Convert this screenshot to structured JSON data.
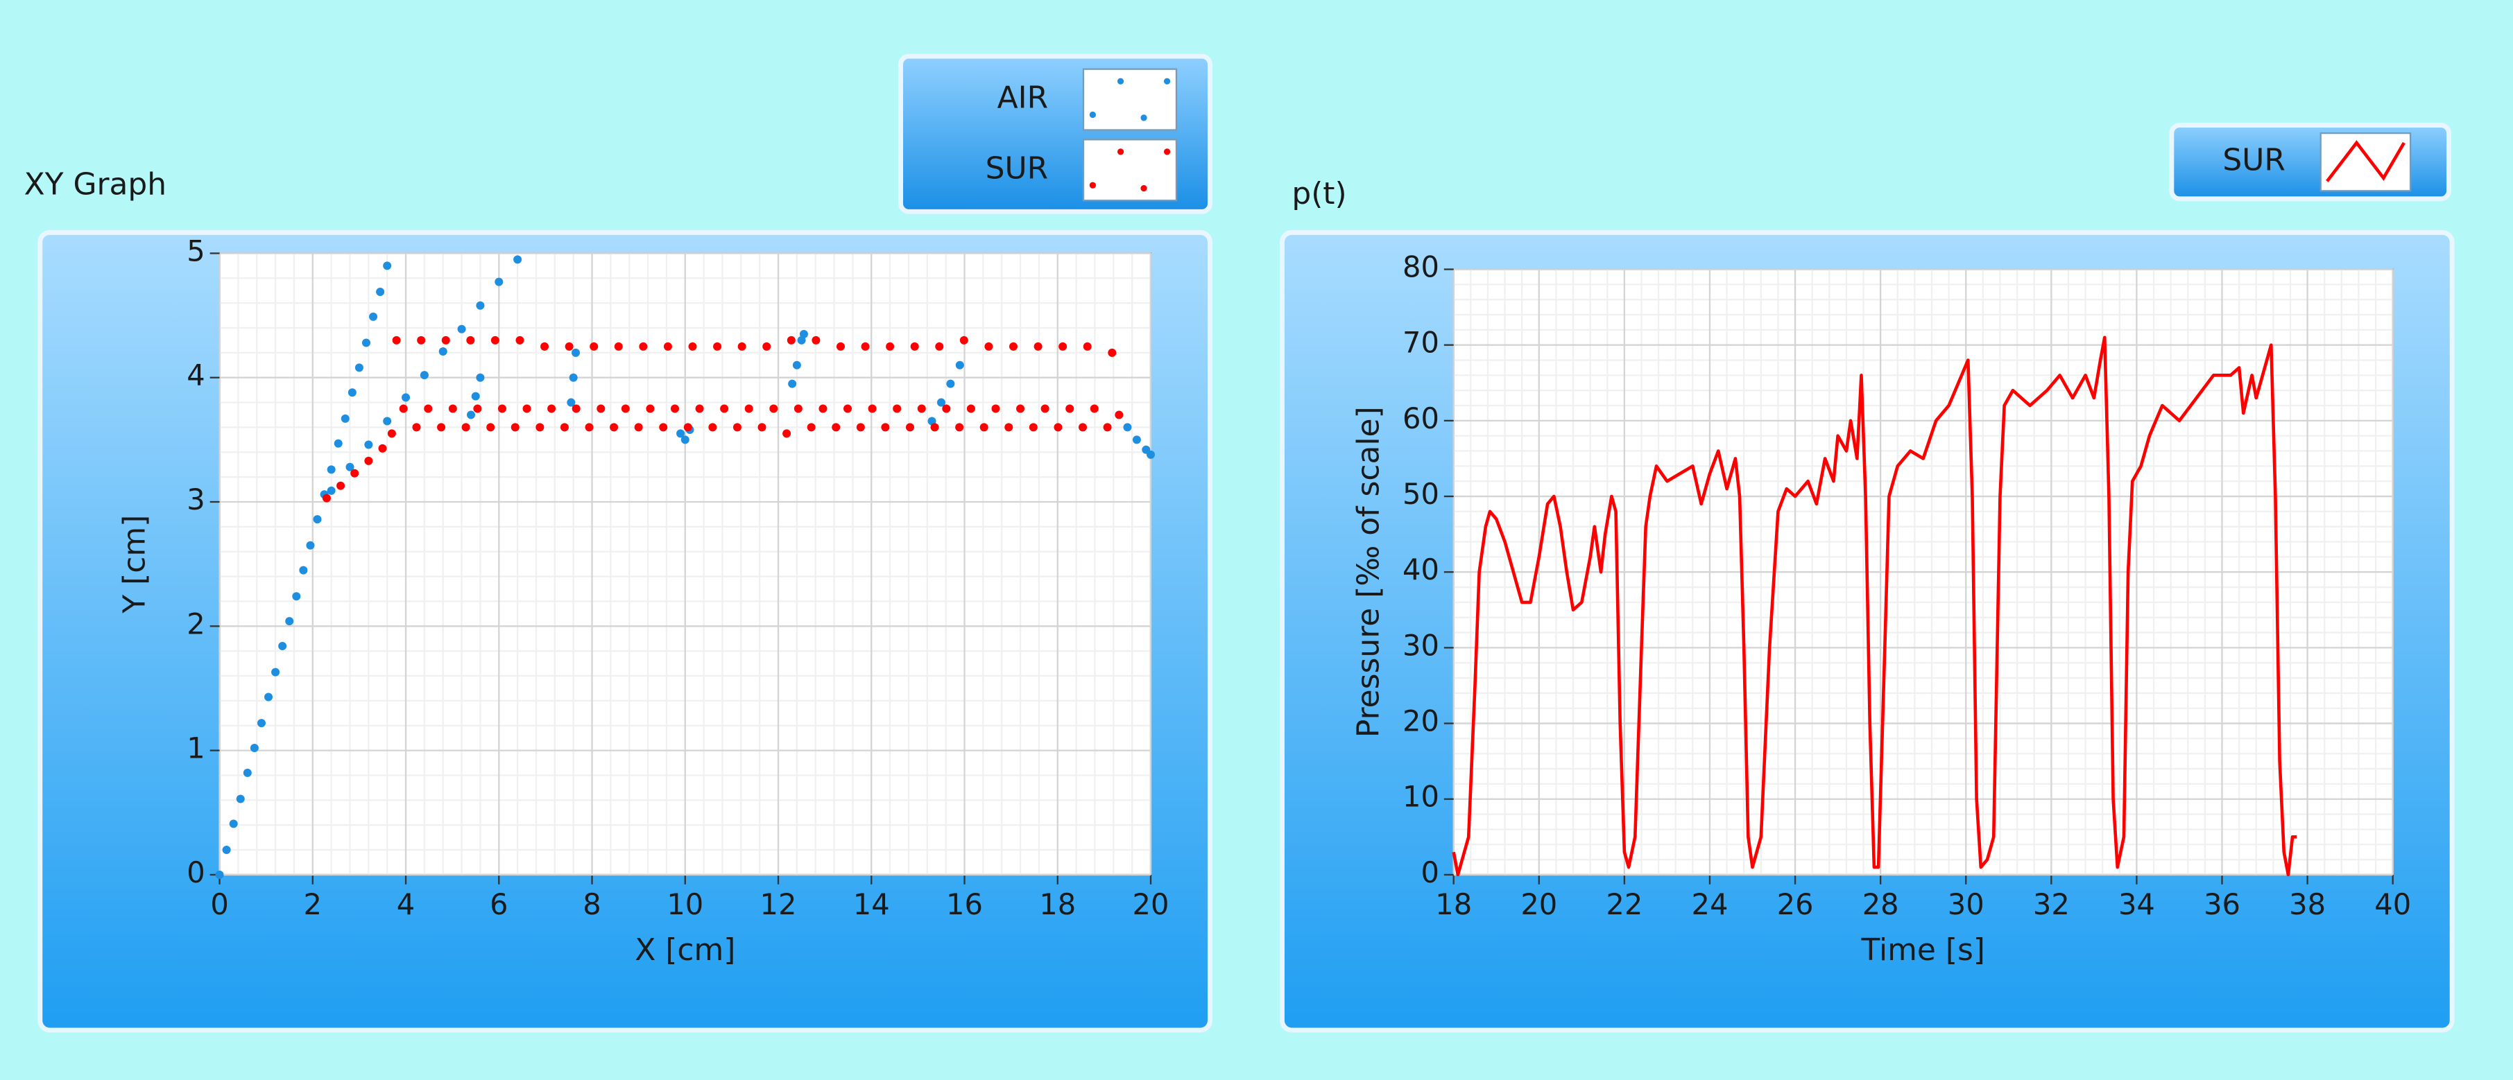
{
  "chart_data": [
    {
      "type": "scatter",
      "title": "XY Graph",
      "x_label": "X [cm]",
      "y_label": "Y [cm]",
      "xlim": [
        0,
        20
      ],
      "xticks": [
        0,
        2,
        4,
        6,
        8,
        10,
        12,
        14,
        16,
        18,
        20
      ],
      "ylim": [
        0,
        5
      ],
      "yticks": [
        0,
        1,
        2,
        3,
        4,
        5
      ],
      "grid": true,
      "series": [
        {
          "name": "AIR",
          "color": "#1e8fe0",
          "x": [
            0,
            0.15,
            0.3,
            0.45,
            0.6,
            0.75,
            0.9,
            1.05,
            1.2,
            1.35,
            1.5,
            1.65,
            1.8,
            1.95,
            2.1,
            2.25,
            2.4,
            2.55,
            2.7,
            2.85,
            3.0,
            3.15,
            3.3,
            3.45,
            3.6,
            2.4,
            2.8,
            3.2,
            3.6,
            4.0,
            4.4,
            4.8,
            5.2,
            5.6,
            6.0,
            6.4,
            5.4,
            5.5,
            5.6,
            7.55,
            7.6,
            7.65,
            9.9,
            10.0,
            10.1,
            12.3,
            12.4,
            12.5,
            12.55,
            15.3,
            15.5,
            15.7,
            15.9,
            19.5,
            19.7,
            19.9,
            20.0
          ],
          "values": [
            0,
            0.2,
            0.41,
            0.61,
            0.82,
            1.02,
            1.22,
            1.43,
            1.63,
            1.84,
            2.04,
            2.24,
            2.45,
            2.65,
            2.86,
            3.06,
            3.26,
            3.47,
            3.67,
            3.88,
            4.08,
            4.28,
            4.49,
            4.69,
            4.9,
            3.09,
            3.28,
            3.46,
            3.65,
            3.84,
            4.02,
            4.21,
            4.39,
            4.58,
            4.77,
            4.95,
            3.7,
            3.85,
            4.0,
            3.8,
            4.0,
            4.2,
            3.55,
            3.5,
            3.58,
            3.95,
            4.1,
            4.3,
            4.35,
            3.65,
            3.8,
            3.95,
            4.1,
            3.6,
            3.5,
            3.42,
            3.38
          ]
        },
        {
          "name": "SUR",
          "color": "#ff0000",
          "x": [
            2.3,
            2.6,
            2.9,
            3.2,
            3.5,
            3.7,
            3.8,
            3.95,
            4.23,
            4.33,
            4.48,
            4.76,
            4.86,
            5.01,
            5.29,
            5.39,
            5.54,
            5.82,
            5.92,
            6.07,
            6.35,
            6.45,
            6.6,
            6.88,
            6.98,
            7.13,
            7.41,
            7.51,
            7.66,
            7.94,
            8.04,
            8.19,
            8.47,
            8.57,
            8.72,
            9.0,
            9.1,
            9.25,
            9.53,
            9.63,
            9.78,
            10.06,
            10.16,
            10.31,
            10.59,
            10.69,
            10.84,
            11.12,
            11.22,
            11.37,
            11.65,
            11.75,
            11.9,
            12.18,
            12.28,
            12.43,
            12.71,
            12.81,
            12.96,
            13.24,
            13.34,
            13.49,
            13.77,
            13.87,
            14.02,
            14.3,
            14.4,
            14.55,
            14.83,
            14.93,
            15.08,
            15.36,
            15.46,
            15.61,
            15.89,
            15.99,
            16.14,
            16.42,
            16.52,
            16.67,
            16.95,
            17.05,
            17.2,
            17.48,
            17.58,
            17.73,
            18.01,
            18.11,
            18.26,
            18.54,
            18.64,
            18.79,
            19.07,
            19.17,
            19.32
          ],
          "values": [
            3.03,
            3.13,
            3.23,
            3.33,
            3.43,
            3.55,
            4.3,
            3.75,
            3.6,
            4.3,
            3.75,
            3.6,
            4.3,
            3.75,
            3.6,
            4.3,
            3.75,
            3.6,
            4.3,
            3.75,
            3.6,
            4.3,
            3.75,
            3.6,
            4.25,
            3.75,
            3.6,
            4.25,
            3.75,
            3.6,
            4.25,
            3.75,
            3.6,
            4.25,
            3.75,
            3.6,
            4.25,
            3.75,
            3.6,
            4.25,
            3.75,
            3.6,
            4.25,
            3.75,
            3.6,
            4.25,
            3.75,
            3.6,
            4.25,
            3.75,
            3.6,
            4.25,
            3.75,
            3.55,
            4.3,
            3.75,
            3.6,
            4.3,
            3.75,
            3.6,
            4.25,
            3.75,
            3.6,
            4.25,
            3.75,
            3.6,
            4.25,
            3.75,
            3.6,
            4.25,
            3.75,
            3.6,
            4.25,
            3.75,
            3.6,
            4.3,
            3.75,
            3.6,
            4.25,
            3.75,
            3.6,
            4.25,
            3.75,
            3.6,
            4.25,
            3.75,
            3.6,
            4.25,
            3.75,
            3.6,
            4.25,
            3.75,
            3.6,
            4.2,
            3.7
          ]
        }
      ]
    },
    {
      "type": "line",
      "title": "p(t)",
      "x_label": "Time [s]",
      "y_label": "Pressure [‰ of scale]",
      "xlim": [
        18,
        40
      ],
      "xticks": [
        18,
        20,
        22,
        24,
        26,
        28,
        30,
        32,
        34,
        36,
        38,
        40
      ],
      "ylim": [
        0,
        80
      ],
      "yticks": [
        0,
        10,
        20,
        30,
        40,
        50,
        60,
        70,
        80
      ],
      "grid": true,
      "series": [
        {
          "name": "SUR",
          "color": "#ff0000",
          "x": [
            18.0,
            18.1,
            18.2,
            18.35,
            18.5,
            18.6,
            18.75,
            18.85,
            19.0,
            19.2,
            19.4,
            19.6,
            19.8,
            20.0,
            20.2,
            20.35,
            20.5,
            20.65,
            20.8,
            21.0,
            21.2,
            21.3,
            21.45,
            21.55,
            21.7,
            21.8,
            21.9,
            22.0,
            22.1,
            22.25,
            22.4,
            22.5,
            22.6,
            22.75,
            23.0,
            23.3,
            23.6,
            23.8,
            24.0,
            24.2,
            24.4,
            24.6,
            24.7,
            24.8,
            24.9,
            25.0,
            25.2,
            25.4,
            25.6,
            25.8,
            26.0,
            26.3,
            26.5,
            26.7,
            26.9,
            27.0,
            27.2,
            27.3,
            27.45,
            27.55,
            27.65,
            27.75,
            27.85,
            27.95,
            28.1,
            28.2,
            28.4,
            28.7,
            29.0,
            29.3,
            29.6,
            29.9,
            30.05,
            30.15,
            30.25,
            30.35,
            30.5,
            30.65,
            30.8,
            30.9,
            31.1,
            31.5,
            31.9,
            32.2,
            32.5,
            32.8,
            33.0,
            33.15,
            33.25,
            33.35,
            33.45,
            33.55,
            33.7,
            33.8,
            33.9,
            34.1,
            34.3,
            34.6,
            35.0,
            35.4,
            35.8,
            36.2,
            36.4,
            36.5,
            36.7,
            36.8,
            37.0,
            37.15,
            37.25,
            37.35,
            37.45,
            37.55,
            37.65,
            37.75
          ],
          "values": [
            3,
            0,
            2,
            5,
            25,
            40,
            46,
            48,
            47,
            44,
            40,
            36,
            36,
            42,
            49,
            50,
            46,
            40,
            35,
            36,
            42,
            46,
            40,
            45,
            50,
            48,
            20,
            3,
            1,
            5,
            30,
            46,
            50,
            54,
            52,
            53,
            54,
            49,
            53,
            56,
            51,
            55,
            50,
            30,
            5,
            1,
            5,
            30,
            48,
            51,
            50,
            52,
            49,
            55,
            52,
            58,
            56,
            60,
            55,
            66,
            50,
            20,
            1,
            1,
            30,
            50,
            54,
            56,
            55,
            60,
            62,
            66,
            68,
            50,
            10,
            1,
            2,
            5,
            50,
            62,
            64,
            62,
            64,
            66,
            63,
            66,
            63,
            68,
            71,
            50,
            10,
            1,
            5,
            40,
            52,
            54,
            58,
            62,
            60,
            63,
            66,
            66,
            67,
            61,
            66,
            63,
            67,
            70,
            50,
            15,
            3,
            0,
            5,
            5
          ]
        }
      ]
    }
  ]
}
